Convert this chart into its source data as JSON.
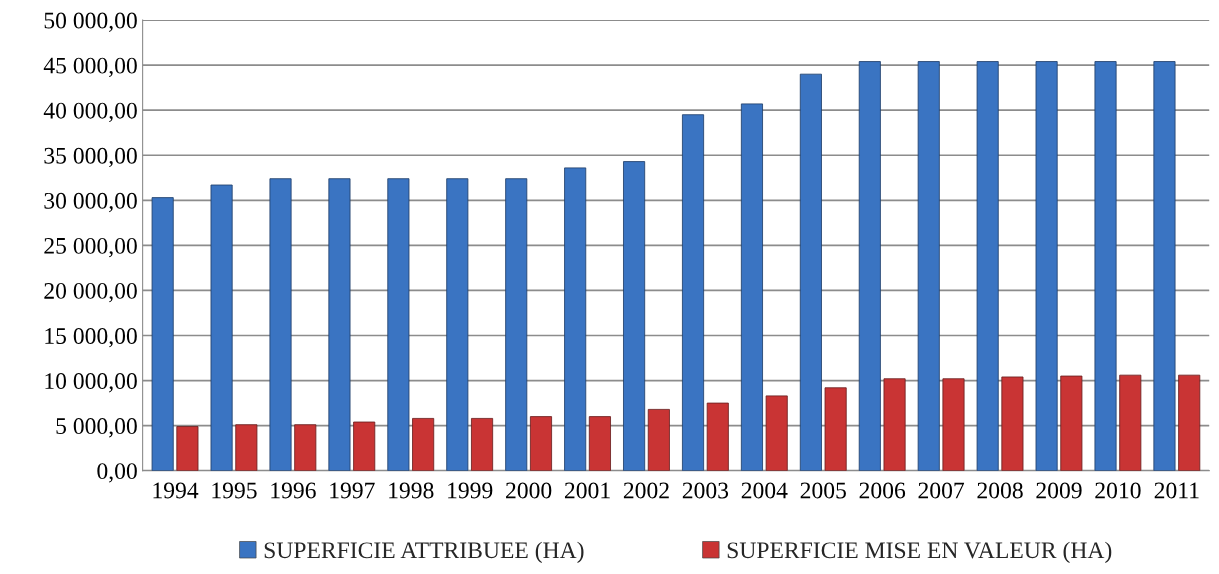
{
  "chart_data": {
    "type": "bar",
    "categories": [
      "1994",
      "1995",
      "1996",
      "1997",
      "1998",
      "1999",
      "2000",
      "2001",
      "2002",
      "2003",
      "2004",
      "2005",
      "2006",
      "2007",
      "2008",
      "2009",
      "2010",
      "2011"
    ],
    "series": [
      {
        "name": "SUPERFICIE ATTRIBUEE (HA)",
        "color": "#3a74c2",
        "values": [
          30300,
          31700,
          32400,
          32400,
          32400,
          32400,
          32400,
          33600,
          34300,
          39500,
          40700,
          44000,
          45400,
          45400,
          45400,
          45400,
          45400,
          45400
        ]
      },
      {
        "name": "SUPERFICIE MISE EN VALEUR (HA)",
        "color": "#c93434",
        "values": [
          4900,
          5100,
          5100,
          5400,
          5800,
          5800,
          6000,
          6000,
          6800,
          7500,
          8300,
          9200,
          10200,
          10200,
          10400,
          10500,
          10600,
          10600
        ]
      }
    ],
    "ylim": [
      0,
      50000
    ],
    "yticks": [
      {
        "value": 0,
        "label": "0,00"
      },
      {
        "value": 5000,
        "label": "5 000,00"
      },
      {
        "value": 10000,
        "label": "10 000,00"
      },
      {
        "value": 15000,
        "label": "15 000,00"
      },
      {
        "value": 20000,
        "label": "20 000,00"
      },
      {
        "value": 25000,
        "label": "25 000,00"
      },
      {
        "value": 30000,
        "label": "30 000,00"
      },
      {
        "value": 35000,
        "label": "35 000,00"
      },
      {
        "value": 40000,
        "label": "40 000,00"
      },
      {
        "value": 45000,
        "label": "45 000,00"
      },
      {
        "value": 50000,
        "label": "50 000,00"
      }
    ],
    "grid": "y",
    "legend": "bottom"
  }
}
